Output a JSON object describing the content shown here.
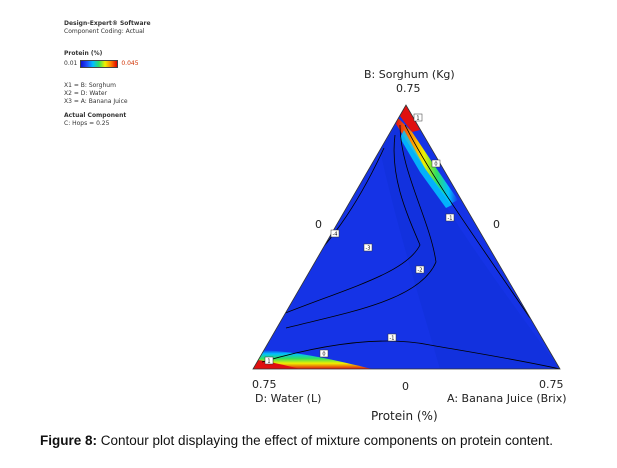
{
  "info": {
    "software": "Design-Expert® Software",
    "coding": "Component Coding: Actual",
    "response_title": "Protein (%)",
    "legend_min": "0.01",
    "legend_max": "0.045",
    "x1": "X1 = B: Sorghum",
    "x2": "X2 = D: Water",
    "x3": "X3 = A: Banana Juice",
    "actual_title": "Actual Component",
    "actual_value": "C: Hops = 0.25"
  },
  "chart_data": {
    "type": "ternary-contour",
    "title": "Protein (%)",
    "axes": {
      "top": {
        "label": "B: Sorghum (Kg)",
        "max_label": "0.75",
        "min_label": "0"
      },
      "left": {
        "label": "D: Water (L)",
        "max_label": "0.75",
        "min_label": "0"
      },
      "right": {
        "label": "A: Banana Juice (Brix)",
        "max_label": "0.75",
        "min_label": "0"
      }
    },
    "contour_labels": [
      "1",
      "0",
      "-1",
      "-4",
      "-3",
      "-2",
      "-1",
      "0",
      "1"
    ],
    "colors": {
      "base": "#1533e6",
      "low": "#0f28c8",
      "mid": "#00c8ff",
      "high": "#e01010",
      "warm": "#f0e000"
    }
  },
  "caption": {
    "prefix": "Figure 8:",
    "text": " Contour plot displaying the effect of mixture components on protein content."
  }
}
